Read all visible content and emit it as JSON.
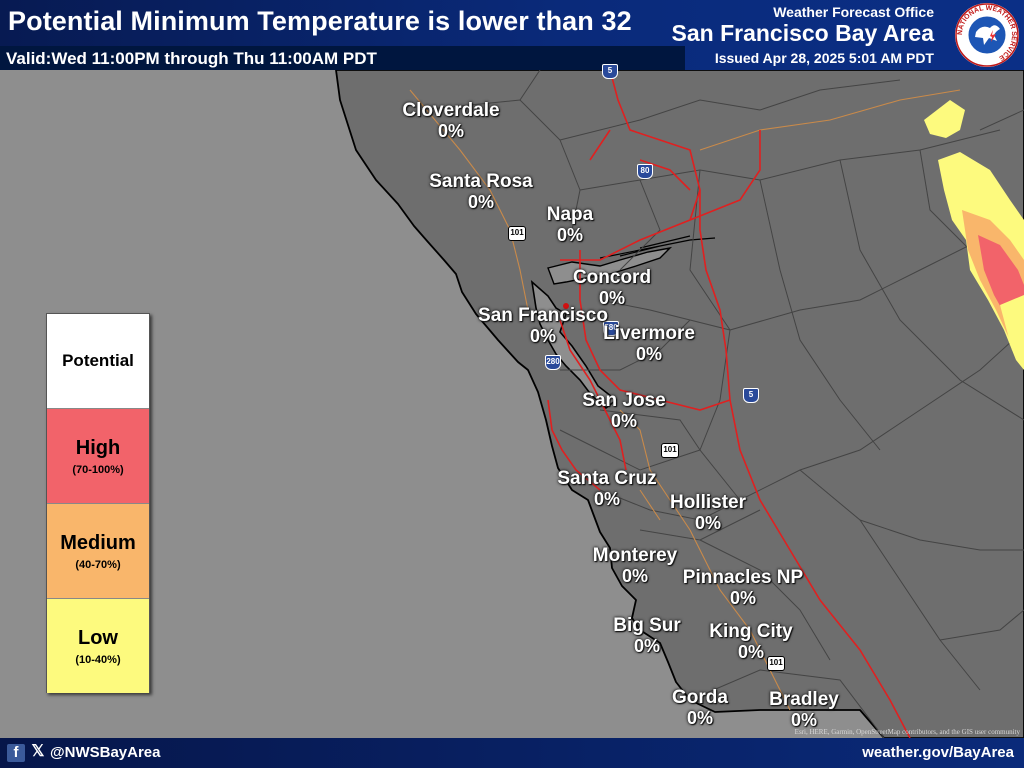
{
  "header": {
    "title": "Potential Minimum Temperature is lower than 32",
    "valid": "Valid:Wed 11:00PM through Thu 11:00AM PDT",
    "office": "Weather Forecast Office",
    "area": "San Francisco Bay Area",
    "issued": "Issued Apr 28, 2025 5:01 AM PDT",
    "logo_text": "NATIONAL WEATHER SERVICE"
  },
  "legend": {
    "heading": "Potential",
    "levels": [
      {
        "name": "High",
        "range": "(70-100%)",
        "color": "#f2636a"
      },
      {
        "name": "Medium",
        "range": "(40-70%)",
        "color": "#f9b66b"
      },
      {
        "name": "Low",
        "range": "(10-40%)",
        "color": "#fdfa7e"
      }
    ]
  },
  "cities": [
    {
      "name": "Cloverdale",
      "value": "0%"
    },
    {
      "name": "Santa Rosa",
      "value": "0%"
    },
    {
      "name": "Napa",
      "value": "0%"
    },
    {
      "name": "Concord",
      "value": "0%"
    },
    {
      "name": "San Francisco",
      "value": "0%"
    },
    {
      "name": "Livermore",
      "value": "0%"
    },
    {
      "name": "San Jose",
      "value": "0%"
    },
    {
      "name": "Santa Cruz",
      "value": "0%"
    },
    {
      "name": "Hollister",
      "value": "0%"
    },
    {
      "name": "Monterey",
      "value": "0%"
    },
    {
      "name": "Pinnacles NP",
      "value": "0%"
    },
    {
      "name": "Big Sur",
      "value": "0%"
    },
    {
      "name": "King City",
      "value": "0%"
    },
    {
      "name": "Gorda",
      "value": "0%"
    },
    {
      "name": "Bradley",
      "value": "0%"
    }
  ],
  "highways": {
    "i5_top": "5",
    "i80": "80",
    "us101_north": "101",
    "i580": "580",
    "i280": "280",
    "i5_mid": "5",
    "us101_mid": "101",
    "us101_south": "101"
  },
  "colors": {
    "ocean": "#8e8e8e",
    "land": "#6e6e6e",
    "border": "#3a3a3a",
    "coast": "#000000",
    "highway": "#e02020",
    "minor_road": "#c98a4a",
    "header_bg": "#0a2a7a"
  },
  "footer": {
    "handle": "@NWSBayArea",
    "website": "weather.gov/BayArea",
    "attribution": "Esri, HERE, Garmin, OpenStreetMap contributors, and the GIS user community"
  }
}
